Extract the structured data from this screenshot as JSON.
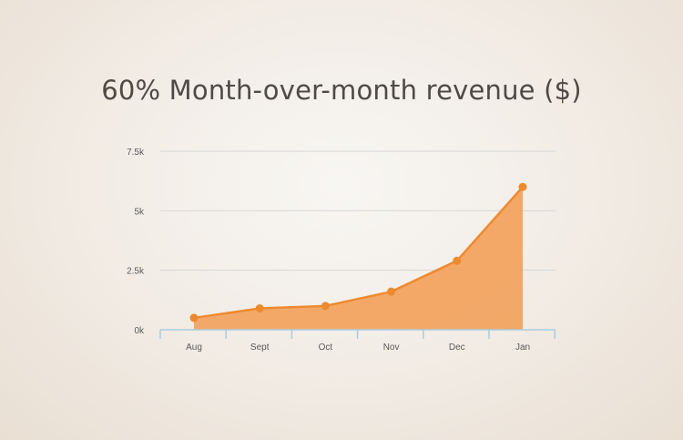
{
  "chart_data": {
    "type": "area",
    "title": "60% Month-over-month revenue ($)",
    "xlabel": "",
    "ylabel": "",
    "categories": [
      "Aug",
      "Sept",
      "Oct",
      "Nov",
      "Dec",
      "Jan"
    ],
    "series": [
      {
        "values": [
          500,
          900,
          1000,
          1600,
          2900,
          6000
        ]
      }
    ],
    "y_ticks": [
      0,
      2500,
      5000,
      7500
    ],
    "y_tick_labels": [
      "0k",
      "2.5k",
      "5k",
      "7.5k"
    ],
    "ylim": [
      0,
      7500
    ],
    "grid": true,
    "legend": "none",
    "colors": {
      "fill": "#f2a35e",
      "line": "#ee8a30",
      "marker": "#ec8a2e",
      "grid": "#d5d7d8",
      "axis": "#a9cde0"
    }
  }
}
